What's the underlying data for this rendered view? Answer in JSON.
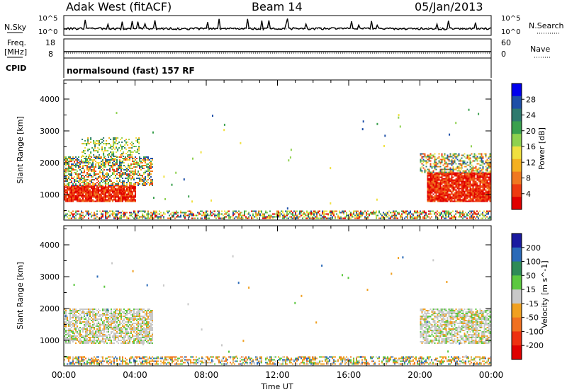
{
  "header": {
    "station": "Adak West (fitACF)",
    "beam": "Beam 14",
    "date": "05/Jan/2013"
  },
  "status_panel": {
    "nsky_label": "N.Sky",
    "nsky_ticks": [
      "10^5",
      "10^0"
    ],
    "nsearch_label": "N.Search",
    "nsearch_ticks": [
      "10^5",
      "10^0"
    ],
    "freq_label_1": "Freq.",
    "freq_label_2": "[MHz]",
    "freq_ticks": [
      "18",
      "8"
    ],
    "nave_label": "Nave",
    "nave_ticks": [
      "60",
      "0"
    ],
    "cpid_label": "CPID",
    "cpid_text": "normalsound (fast) 157 RF"
  },
  "chart_data": [
    {
      "type": "heatmap",
      "panel": "power",
      "ylabel": "Slant Range [km]",
      "xlabel": "",
      "y_ticks": [
        "1000",
        "2000",
        "3000",
        "4000"
      ],
      "ylim": [
        200,
        4600
      ],
      "colorbar": {
        "label": "Power [dB]",
        "ticks": [
          "28",
          "24",
          "20",
          "16",
          "12",
          "8",
          "4"
        ],
        "colors": [
          "#0000ee",
          "#1e4fa8",
          "#2f7a6e",
          "#3aa04e",
          "#8fd14f",
          "#f0e040",
          "#f4b020",
          "#f07820",
          "#ee3a10",
          "#e00000"
        ]
      },
      "echo_regions": [
        {
          "t_start": 0.0,
          "t_end": 4.0,
          "r_low": 800,
          "r_high": 1300,
          "level": "high"
        },
        {
          "t_start": 0.0,
          "t_end": 5.0,
          "r_low": 1300,
          "r_high": 2200,
          "level": "mixed"
        },
        {
          "t_start": 1.0,
          "t_end": 4.2,
          "r_low": 2200,
          "r_high": 2800,
          "level": "low"
        },
        {
          "t_start": 20.4,
          "t_end": 24.0,
          "r_low": 800,
          "r_high": 1700,
          "level": "high"
        },
        {
          "t_start": 20.0,
          "t_end": 24.0,
          "r_low": 1700,
          "r_high": 2300,
          "level": "mixed"
        },
        {
          "t_start": 0.0,
          "t_end": 24.0,
          "r_low": 250,
          "r_high": 500,
          "level": "ground"
        }
      ]
    },
    {
      "type": "heatmap",
      "panel": "velocity",
      "ylabel": "Slant Range [km]",
      "xlabel": "Time UT",
      "x_ticks": [
        "00:00",
        "04:00",
        "08:00",
        "12:00",
        "16:00",
        "20:00",
        "00:00"
      ],
      "y_ticks": [
        "1000",
        "2000",
        "3000",
        "4000"
      ],
      "ylim": [
        200,
        4600
      ],
      "colorbar": {
        "label": "Velocity [m s^-1]",
        "ticks": [
          "200",
          "100",
          "50",
          "15",
          "-15",
          "-50",
          "-100",
          "-200"
        ],
        "colors": [
          "#1a1aa0",
          "#2a6ab8",
          "#2e8b57",
          "#5cc840",
          "#c8c8c8",
          "#f0a020",
          "#f07020",
          "#ee3010",
          "#e00000"
        ]
      },
      "echo_regions": [
        {
          "t_start": 0.0,
          "t_end": 5.0,
          "r_low": 900,
          "r_high": 2000,
          "level": "gray"
        },
        {
          "t_start": 20.0,
          "t_end": 24.0,
          "r_low": 900,
          "r_high": 2000,
          "level": "gray"
        },
        {
          "t_start": 0.0,
          "t_end": 24.0,
          "r_low": 250,
          "r_high": 500,
          "level": "ground"
        }
      ]
    }
  ],
  "colors": {
    "axis": "#000000",
    "background": "#ffffff"
  }
}
